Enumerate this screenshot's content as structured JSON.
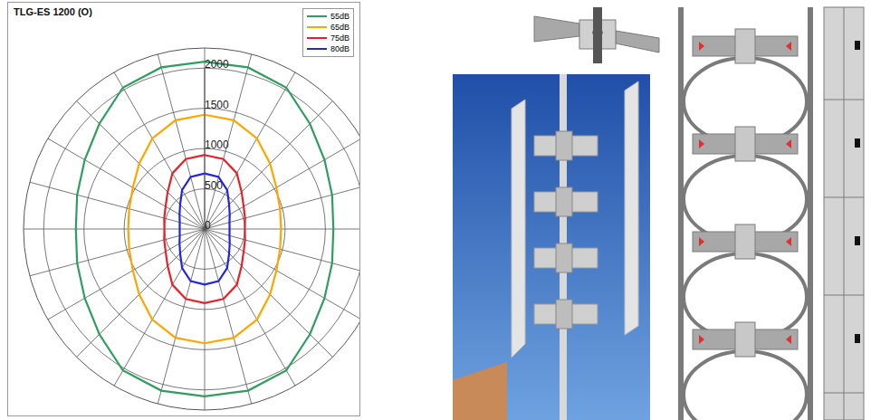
{
  "chart_data": {
    "type": "radar",
    "title": "TLG-ES 1200 (O)",
    "x": [
      0,
      15,
      30,
      45,
      60,
      75,
      90,
      105,
      120,
      135,
      150,
      165,
      180,
      195,
      210,
      225,
      240,
      255,
      270,
      285,
      300,
      315,
      330,
      345
    ],
    "series": [
      {
        "name": "55dB",
        "color": "#2e9e5e",
        "values": [
          2080,
          2080,
          2030,
          1850,
          1720,
          1640,
          1600,
          1640,
          1720,
          1850,
          2030,
          2080,
          2080,
          2080,
          2030,
          1850,
          1720,
          1640,
          1600,
          1640,
          1720,
          1850,
          2030,
          2080
        ]
      },
      {
        "name": "65dB",
        "color": "#ffa500",
        "values": [
          1420,
          1400,
          1300,
          1150,
          1030,
          970,
          950,
          970,
          1030,
          1150,
          1300,
          1400,
          1420,
          1400,
          1300,
          1150,
          1030,
          970,
          950,
          970,
          1030,
          1150,
          1300,
          1400
        ]
      },
      {
        "name": "75dB",
        "color": "#e8202a",
        "values": [
          920,
          900,
          800,
          650,
          560,
          520,
          500,
          520,
          560,
          650,
          800,
          900,
          920,
          900,
          800,
          650,
          560,
          520,
          500,
          520,
          560,
          650,
          800,
          900
        ]
      },
      {
        "name": "80dB",
        "color": "#2424e0",
        "values": [
          690,
          670,
          560,
          430,
          360,
          320,
          310,
          320,
          360,
          430,
          560,
          670,
          690,
          670,
          560,
          430,
          360,
          320,
          310,
          320,
          360,
          430,
          560,
          670
        ]
      }
    ],
    "ylim": [
      0,
      2250
    ],
    "yticks": [
      0,
      500,
      1000,
      1500,
      2000
    ],
    "grid": true,
    "legend": "upper right",
    "tick_labels": "y"
  }
}
